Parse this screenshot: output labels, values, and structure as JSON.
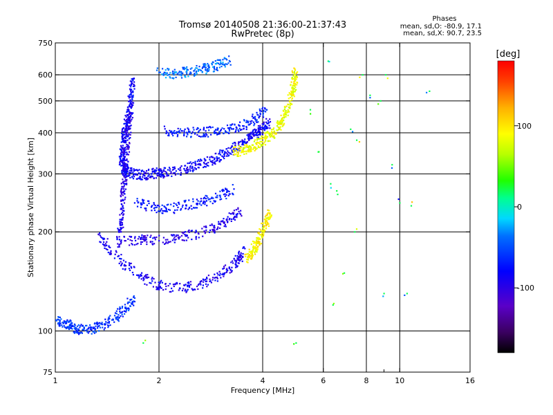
{
  "chart_data": {
    "type": "scatter",
    "title": "Tromsø 20140508 21:36:00-21:37:43",
    "subtitle": "RwPretec (8p)",
    "xlabel": "Frequency [MHz]",
    "ylabel": "Stationary phase Virtual Height [km]",
    "xscale": "log",
    "yscale": "log",
    "xlim": [
      1,
      16
    ],
    "ylim": [
      75,
      750
    ],
    "x_ticks": [
      1,
      2,
      4,
      6,
      8,
      10,
      16
    ],
    "x_tick_labels": [
      "1",
      "2",
      "4",
      "6",
      "8",
      "10",
      "16"
    ],
    "x_minor_ticks": [
      9
    ],
    "y_ticks": [
      75,
      100,
      200,
      300,
      400,
      500,
      600,
      750
    ],
    "y_tick_labels": [
      "75",
      "100",
      "200",
      "300",
      "400",
      "500",
      "600",
      "750"
    ],
    "x_gridlines": [
      2,
      4,
      6,
      8,
      10
    ],
    "y_gridlines": [
      100,
      200,
      300,
      400,
      500,
      600
    ],
    "grid": true,
    "phase_stats": {
      "title": "Phases",
      "line_o": "mean, sd,O: -80.9, 17.1",
      "line_x": "mean, sd,X:  90.7, 23.5"
    },
    "colorbar": {
      "label": "[deg]",
      "range": [
        -180,
        180
      ],
      "ticks": [
        100,
        0,
        -100
      ],
      "tick_labels": [
        "100",
        "0",
        "-100"
      ],
      "colormap": "rainbow: black(-180) -> purple -> blue -> cyan -> green(0) -> yellow -> orange -> red(180)"
    },
    "series": [
      {
        "layer": "O-mode F-region trace (main band)",
        "points": [
          [
            1.68,
            580
          ],
          [
            1.66,
            530
          ],
          [
            1.65,
            480
          ],
          [
            1.62,
            440
          ],
          [
            1.6,
            410
          ],
          [
            1.58,
            380
          ],
          [
            1.57,
            350
          ],
          [
            1.56,
            330
          ],
          [
            1.58,
            310
          ],
          [
            1.62,
            305
          ],
          [
            1.7,
            300
          ],
          [
            1.8,
            298
          ],
          [
            1.9,
            300
          ],
          [
            2.0,
            302
          ],
          [
            2.1,
            303
          ],
          [
            2.3,
            308
          ],
          [
            2.5,
            316
          ],
          [
            2.7,
            325
          ],
          [
            2.9,
            335
          ],
          [
            3.1,
            345
          ],
          [
            3.3,
            358
          ],
          [
            3.5,
            372
          ],
          [
            3.7,
            388
          ],
          [
            3.85,
            400
          ],
          [
            4.0,
            412
          ],
          [
            4.15,
            428
          ]
        ],
        "phase": -85
      },
      {
        "layer": "O-mode F-region trace (upper band)",
        "points": [
          [
            2.1,
            405
          ],
          [
            2.3,
            400
          ],
          [
            2.6,
            402
          ],
          [
            2.9,
            405
          ],
          [
            3.2,
            410
          ],
          [
            3.5,
            420
          ],
          [
            3.8,
            440
          ],
          [
            4.1,
            470
          ]
        ],
        "phase": -70
      },
      {
        "layer": "X-mode F-region trace",
        "points": [
          [
            3.3,
            350
          ],
          [
            3.5,
            355
          ],
          [
            3.7,
            362
          ],
          [
            3.9,
            372
          ],
          [
            4.1,
            385
          ],
          [
            4.3,
            402
          ],
          [
            4.5,
            425
          ],
          [
            4.65,
            455
          ],
          [
            4.8,
            500
          ],
          [
            4.9,
            540
          ],
          [
            4.95,
            580
          ],
          [
            4.97,
            620
          ]
        ],
        "phase": 85
      },
      {
        "layer": "high-altitude echoes",
        "points": [
          [
            2.0,
            610
          ],
          [
            2.2,
            605
          ],
          [
            2.4,
            612
          ],
          [
            2.6,
            622
          ],
          [
            2.8,
            632
          ],
          [
            3.0,
            645
          ],
          [
            3.2,
            662
          ]
        ],
        "phase": -40
      },
      {
        "layer": "O-mode E/F1 trace (lower band)",
        "points": [
          [
            1.35,
            195
          ],
          [
            1.45,
            175
          ],
          [
            1.6,
            158
          ],
          [
            1.8,
            145
          ],
          [
            2.0,
            138
          ],
          [
            2.3,
            135
          ],
          [
            2.6,
            138
          ],
          [
            2.9,
            145
          ],
          [
            3.2,
            155
          ],
          [
            3.4,
            165
          ],
          [
            3.55,
            178
          ]
        ],
        "phase": -90
      },
      {
        "layer": "O-mode E/F1 trace (middle band)",
        "points": [
          [
            1.6,
            188
          ],
          [
            1.8,
            190
          ],
          [
            2.0,
            188
          ],
          [
            2.3,
            193
          ],
          [
            2.6,
            198
          ],
          [
            2.9,
            206
          ],
          [
            3.2,
            218
          ],
          [
            3.45,
            232
          ]
        ],
        "phase": -95
      },
      {
        "layer": "O-mode E/F1 trace (upper band)",
        "points": [
          [
            1.7,
            245
          ],
          [
            1.9,
            238
          ],
          [
            2.1,
            235
          ],
          [
            2.4,
            240
          ],
          [
            2.7,
            248
          ],
          [
            3.0,
            258
          ],
          [
            3.3,
            270
          ]
        ],
        "phase": -75
      },
      {
        "layer": "X-mode E/F1 trace",
        "points": [
          [
            3.6,
            165
          ],
          [
            3.7,
            172
          ],
          [
            3.8,
            180
          ],
          [
            3.9,
            190
          ],
          [
            4.0,
            202
          ],
          [
            4.1,
            215
          ],
          [
            4.2,
            228
          ]
        ],
        "phase": 95
      },
      {
        "layer": "low-frequency trace",
        "points": [
          [
            1.0,
            108
          ],
          [
            1.05,
            106
          ],
          [
            1.1,
            104
          ],
          [
            1.15,
            102
          ],
          [
            1.2,
            101
          ],
          [
            1.3,
            102
          ],
          [
            1.4,
            105
          ],
          [
            1.5,
            110
          ],
          [
            1.6,
            118
          ],
          [
            1.7,
            126
          ]
        ],
        "phase": -60
      },
      {
        "layer": "vertical streak near 1.6 MHz",
        "points": [
          [
            1.52,
            180
          ],
          [
            1.55,
            210
          ],
          [
            1.57,
            240
          ],
          [
            1.58,
            270
          ],
          [
            1.59,
            300
          ],
          [
            1.6,
            330
          ],
          [
            1.62,
            380
          ],
          [
            1.64,
            430
          ],
          [
            1.66,
            490
          ]
        ],
        "phase": -95
      },
      {
        "layer": "scattered noise",
        "points": [
          [
            1.8,
            92
          ],
          [
            5.0,
            92
          ],
          [
            6.2,
            660
          ],
          [
            6.3,
            280
          ],
          [
            6.9,
            150
          ],
          [
            7.2,
            410
          ],
          [
            7.5,
            380
          ],
          [
            8.2,
            520
          ],
          [
            8.8,
            500
          ],
          [
            9.0,
            130
          ],
          [
            9.5,
            320
          ],
          [
            10.0,
            245
          ],
          [
            10.8,
            240
          ],
          [
            12.2,
            535
          ],
          [
            10.5,
            130
          ],
          [
            9.1,
            600
          ],
          [
            7.8,
            600
          ],
          [
            6.4,
            120
          ],
          [
            5.8,
            350
          ],
          [
            5.5,
            470
          ],
          [
            6.6,
            260
          ],
          [
            7.4,
            200
          ]
        ],
        "phase": 20
      }
    ]
  }
}
